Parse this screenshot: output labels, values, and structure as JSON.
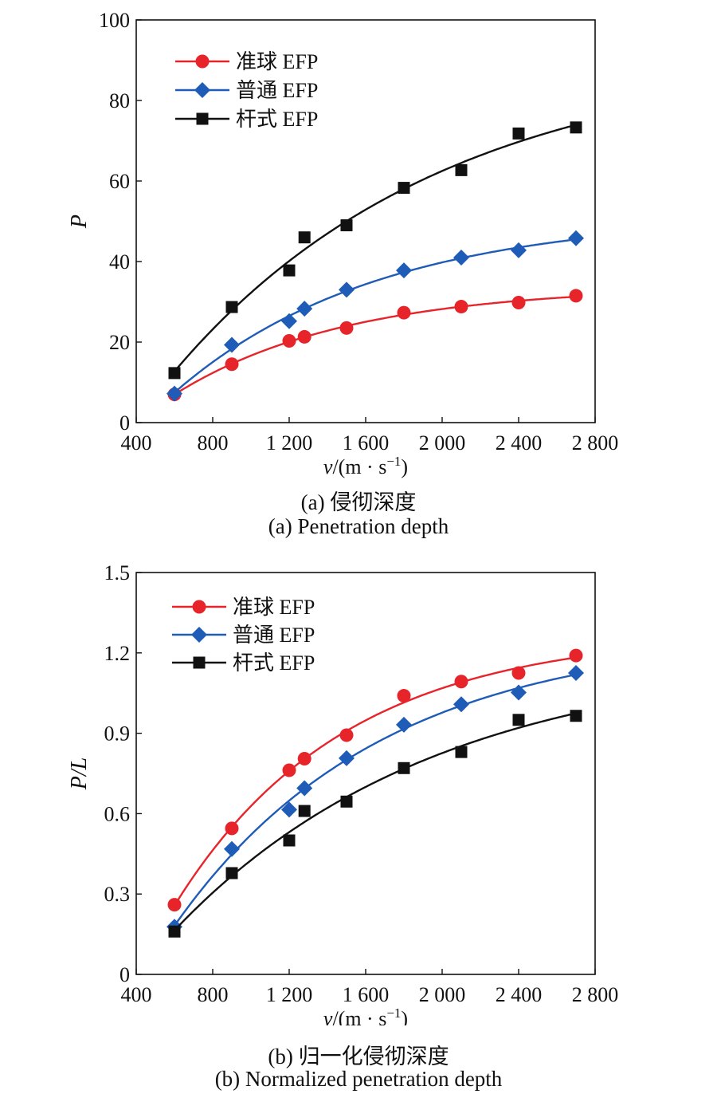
{
  "chart_data": [
    {
      "type": "line",
      "x": [
        600,
        900,
        1200,
        1280,
        1500,
        1800,
        2100,
        2400,
        2700
      ],
      "xticks": [
        "400",
        "800",
        "1 200",
        "1 600",
        "2 000",
        "2 400",
        "2 800"
      ],
      "xtick_values": [
        400,
        800,
        1200,
        1600,
        2000,
        2400,
        2800
      ],
      "xlim": [
        400,
        2800
      ],
      "yticks": [
        "0",
        "20",
        "40",
        "60",
        "80",
        "100"
      ],
      "ytick_values": [
        0,
        20,
        40,
        60,
        80,
        100
      ],
      "ylim": [
        0,
        100
      ],
      "xlabel_var": "v",
      "xlabel_unit": "/(m · s",
      "xlabel_sup": "−1",
      "xlabel_end": ")",
      "ylabel": "P",
      "caption_cn": "(a) 侵彻深度",
      "caption_en": "(a) Penetration depth",
      "legend_position": "top-left",
      "grid": false,
      "series": [
        {
          "name": "准球 EFP",
          "marker": "circle",
          "color": "#e8242b",
          "values": [
            7.0,
            14.5,
            20.3,
            21.3,
            23.5,
            27.3,
            28.8,
            29.8,
            31.5
          ]
        },
        {
          "name": "普通 EFP",
          "marker": "diamond",
          "color": "#1f5cb8",
          "values": [
            7.2,
            19.3,
            25.2,
            28.3,
            33.0,
            37.8,
            41.0,
            42.8,
            45.8
          ]
        },
        {
          "name": "杆式 EFP",
          "marker": "square",
          "color": "#111111",
          "values": [
            12.3,
            28.7,
            37.8,
            46.0,
            49.0,
            58.3,
            62.7,
            71.8,
            73.3
          ]
        }
      ]
    },
    {
      "type": "line",
      "x": [
        600,
        900,
        1200,
        1280,
        1500,
        1800,
        2100,
        2400,
        2700
      ],
      "xticks": [
        "400",
        "800",
        "1 200",
        "1 600",
        "2 000",
        "2 400",
        "2 800"
      ],
      "xtick_values": [
        400,
        800,
        1200,
        1600,
        2000,
        2400,
        2800
      ],
      "xlim": [
        400,
        2800
      ],
      "yticks": [
        "0",
        "0.3",
        "0.6",
        "0.9",
        "1.2",
        "1.5"
      ],
      "ytick_values": [
        0,
        0.3,
        0.6,
        0.9,
        1.2,
        1.5
      ],
      "ylim": [
        0,
        1.5
      ],
      "xlabel_var": "v",
      "xlabel_unit": "/(m · s",
      "xlabel_sup": "−1",
      "xlabel_end": ")",
      "ylabel": "P/L",
      "caption_cn": "(b) 归一化侵彻深度",
      "caption_en": "(b) Normalized penetration depth",
      "legend_position": "top-left",
      "grid": false,
      "series": [
        {
          "name": "准球 EFP",
          "marker": "circle",
          "color": "#e8242b",
          "values": [
            0.26,
            0.545,
            0.762,
            0.805,
            0.893,
            1.04,
            1.093,
            1.125,
            1.19
          ]
        },
        {
          "name": "普通 EFP",
          "marker": "diamond",
          "color": "#1f5cb8",
          "values": [
            0.178,
            0.468,
            0.615,
            0.695,
            0.807,
            0.932,
            1.008,
            1.052,
            1.125
          ]
        },
        {
          "name": "杆式 EFP",
          "marker": "square",
          "color": "#111111",
          "values": [
            0.16,
            0.378,
            0.5,
            0.61,
            0.645,
            0.77,
            0.83,
            0.95,
            0.965
          ]
        }
      ]
    }
  ]
}
